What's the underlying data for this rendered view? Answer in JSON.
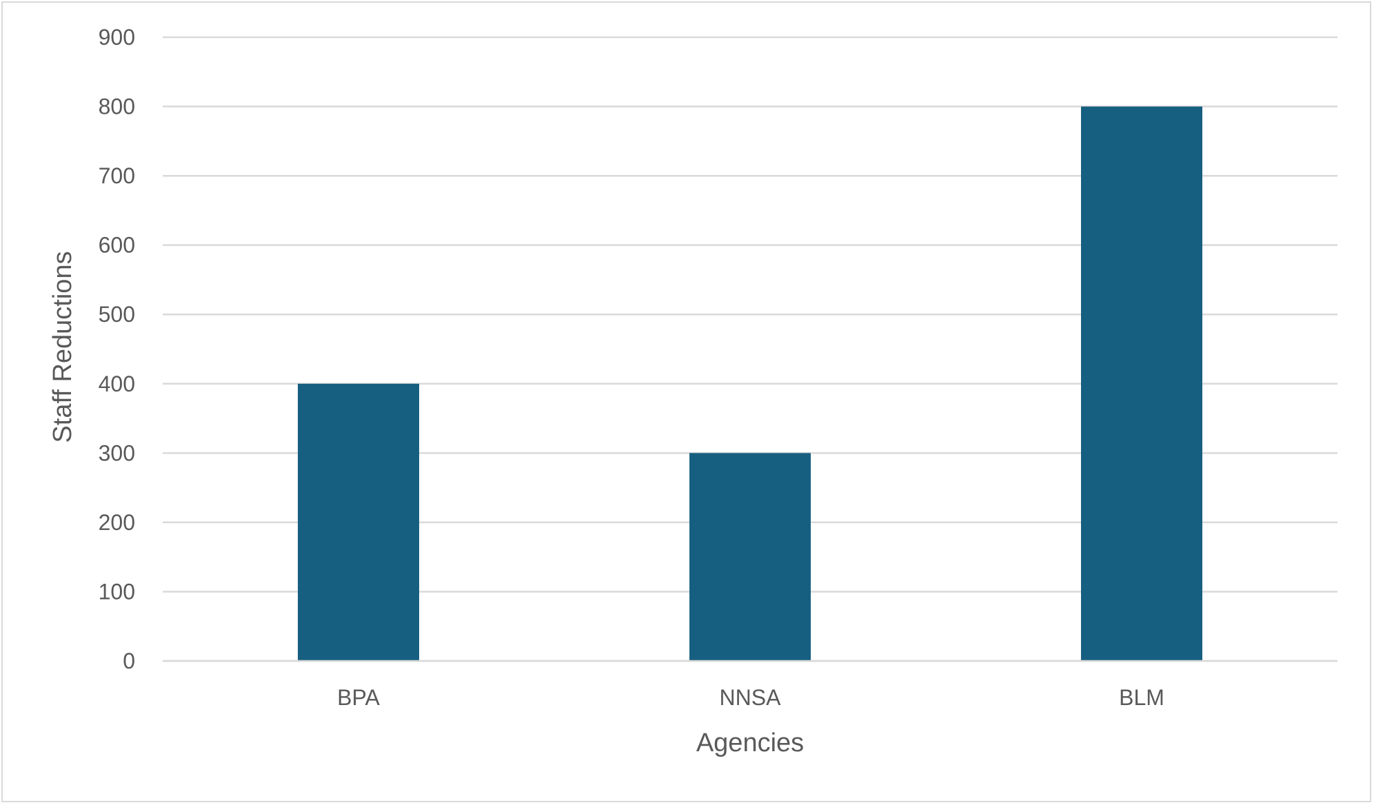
{
  "chart_data": {
    "type": "bar",
    "title": "",
    "xlabel": "Agencies",
    "ylabel": "Staff Reductions",
    "categories": [
      "BPA",
      "NNSA",
      "BLM"
    ],
    "series": [
      {
        "values": [
          400,
          300,
          800
        ]
      }
    ],
    "ylim": [
      0,
      900
    ],
    "yticks": [
      "0",
      "100",
      "200",
      "300",
      "400",
      "500",
      "600",
      "700",
      "800",
      "900"
    ],
    "grid": true,
    "legend": "none",
    "colors": {
      "bar": "#175f80",
      "grid": "#d9d9d9",
      "text": "#595959",
      "border": "#d9d9d9"
    }
  }
}
